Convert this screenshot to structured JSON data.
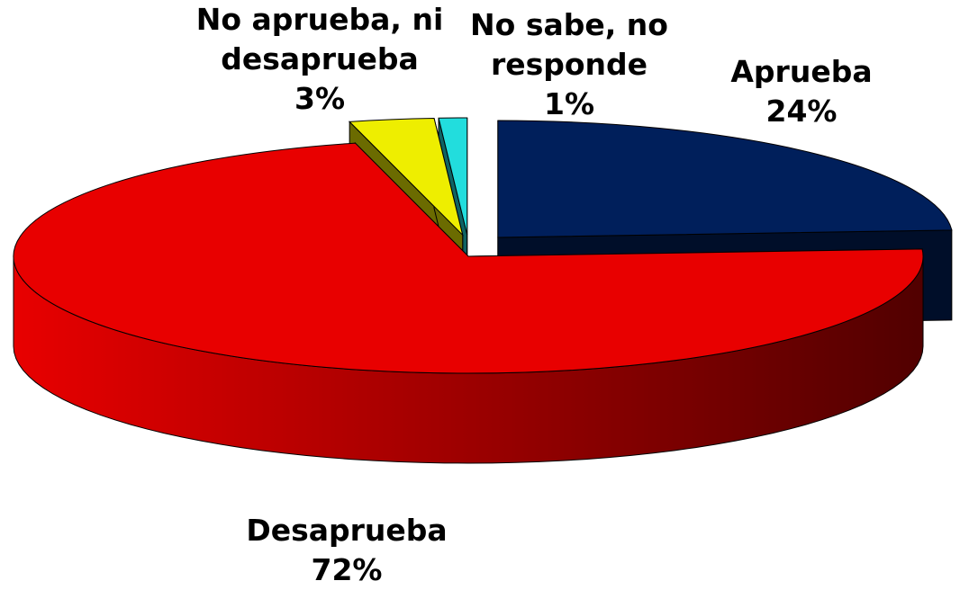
{
  "chart_data": {
    "type": "pie",
    "categories": [
      "Aprueba",
      "Desaprueba",
      "No aprueba, ni desaprueba",
      "No sabe, no responde"
    ],
    "values": [
      24,
      72,
      3,
      1
    ],
    "value_labels": [
      "24%",
      "72%",
      "3%",
      "1%"
    ],
    "colors": [
      "#001f5b",
      "#e80000",
      "#eeee00",
      "#22dddd"
    ]
  }
}
